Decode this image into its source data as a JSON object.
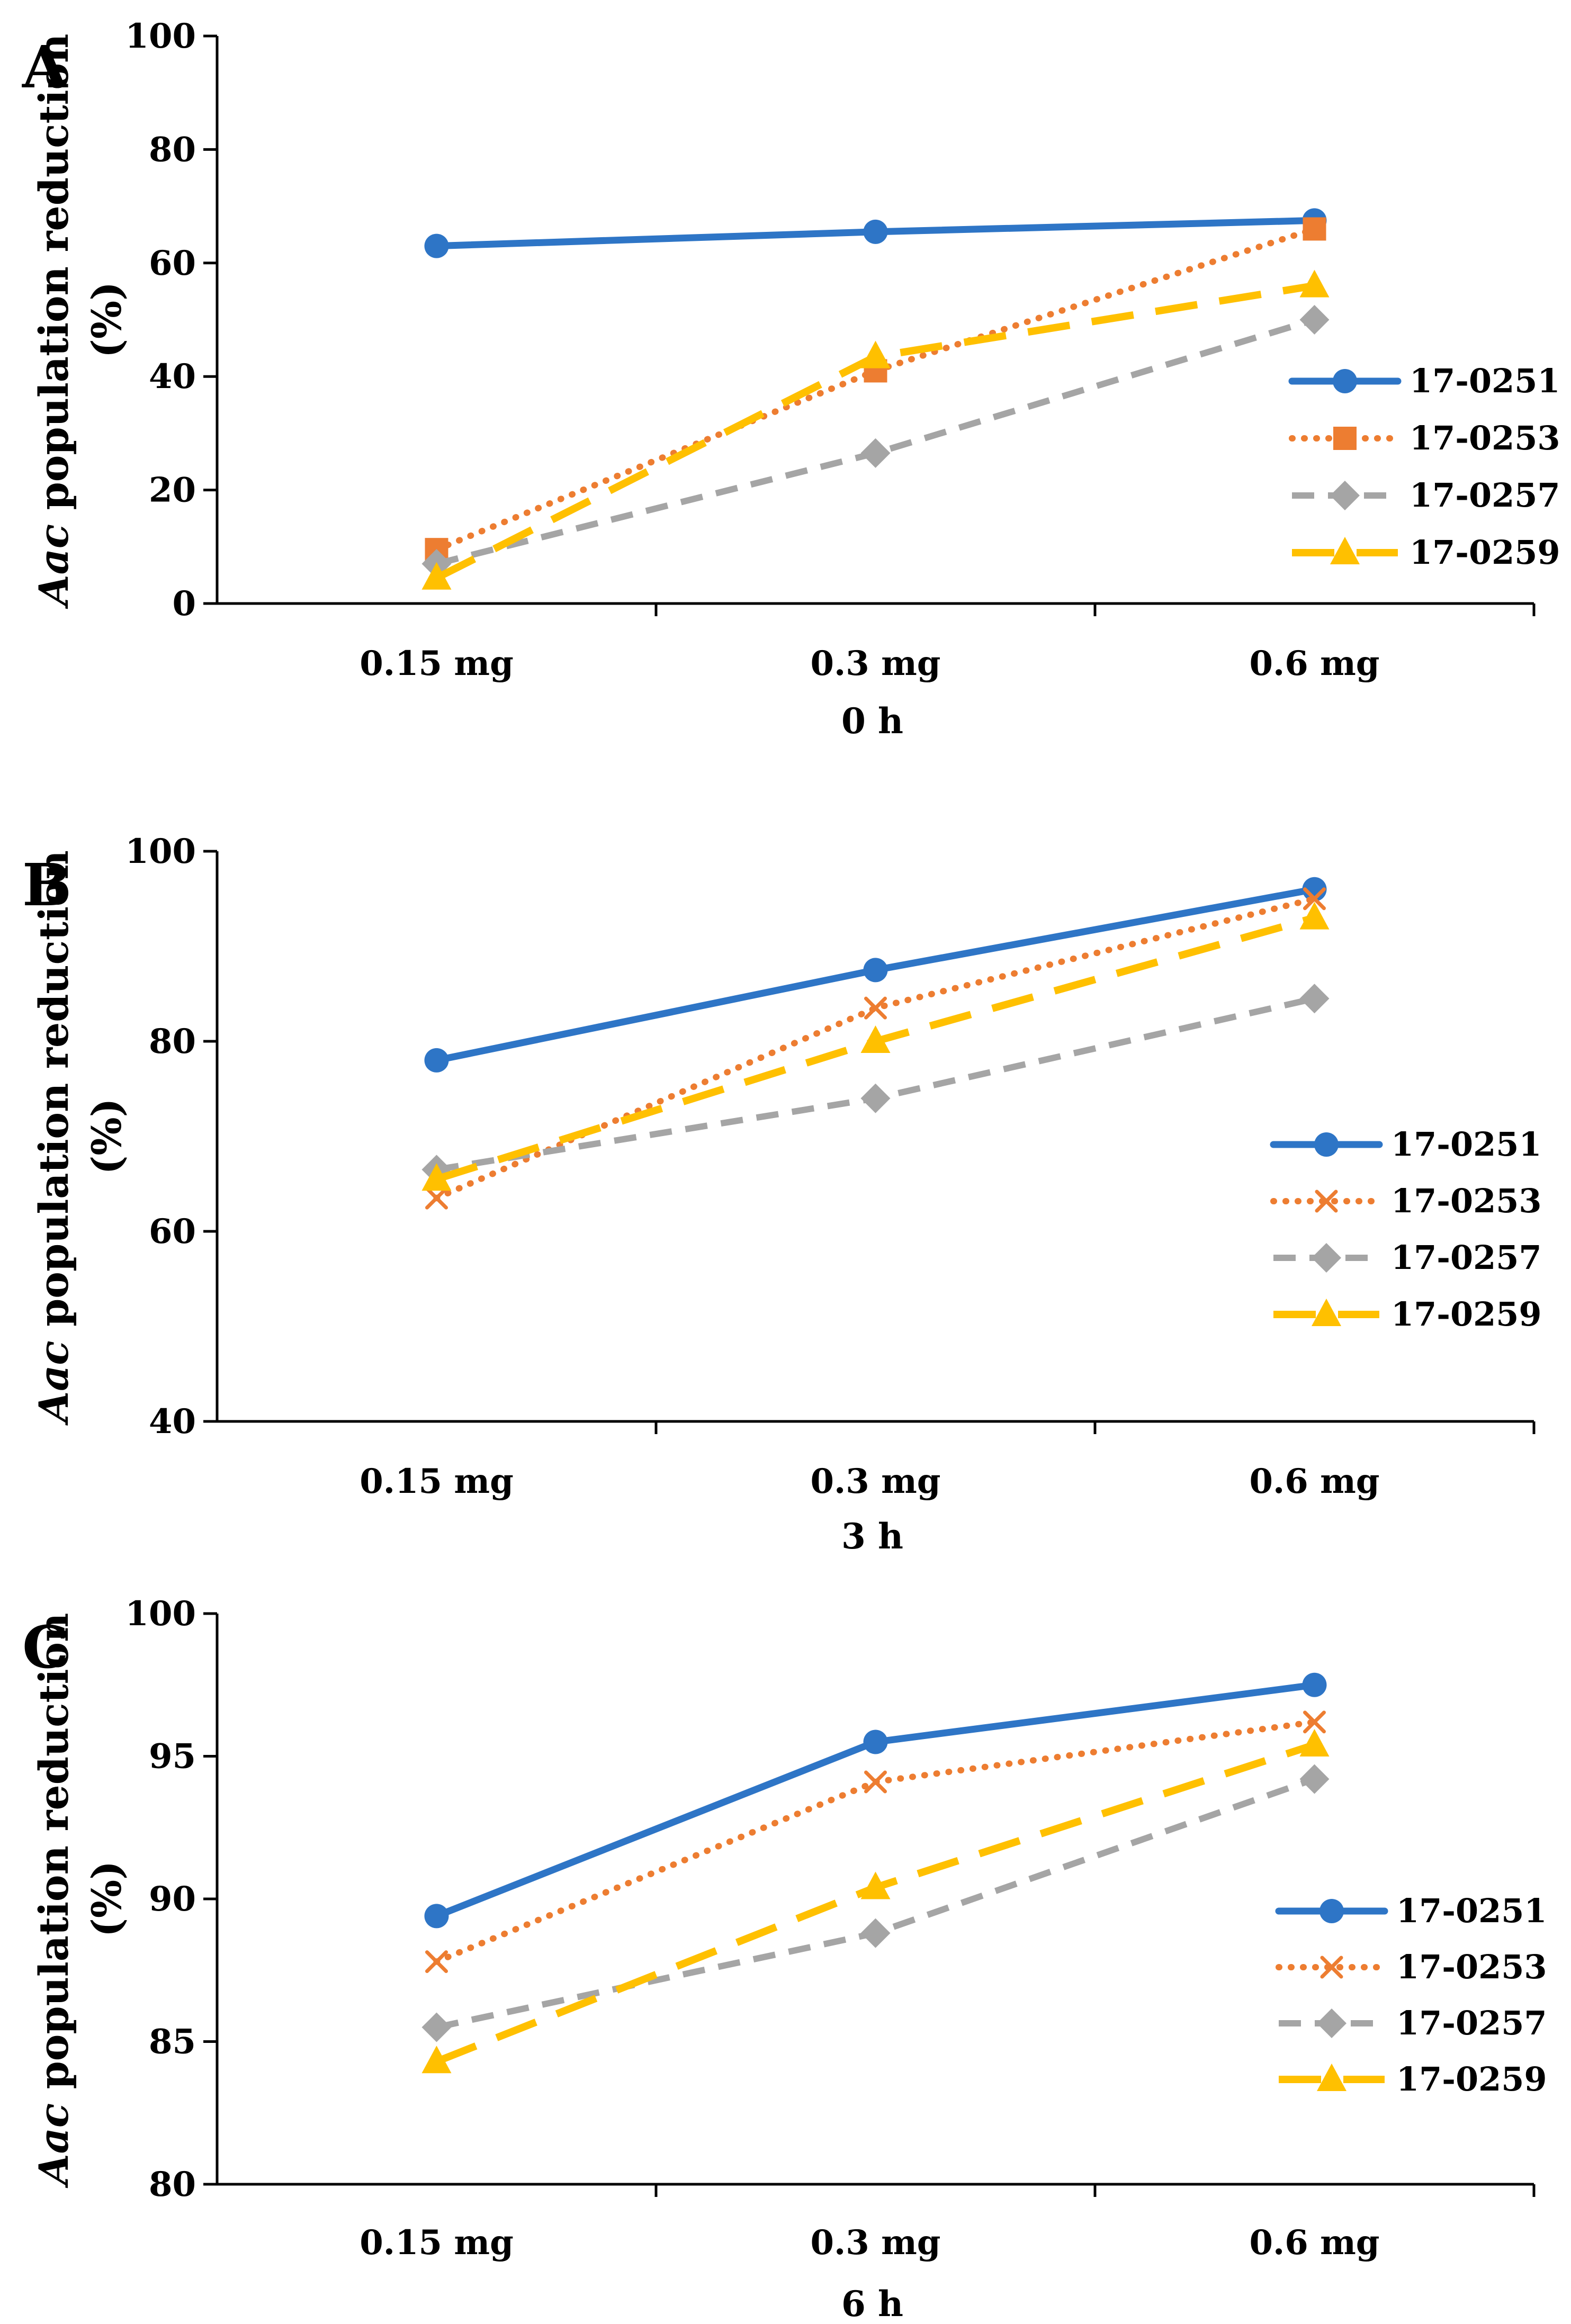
{
  "ylabel_italic": "Aac",
  "ylabel_rest": " population reduction",
  "ylabel_unit": "(%)",
  "colors": {
    "17-0251": "#2E75C6",
    "17-0253": "#ED7D31",
    "17-0257": "#A5A5A5",
    "17-0259": "#FFC000"
  },
  "chart_data": [
    {
      "type": "line",
      "panel": "A",
      "xlabel": "0 h",
      "ylabel": "Aac population reduction (%)",
      "categories": [
        "0.15 mg",
        "0.3 mg",
        "0.6 mg"
      ],
      "ylim": [
        0,
        100
      ],
      "yticks": [
        "0",
        "20",
        "40",
        "60",
        "80",
        "100"
      ],
      "yticks_values": [
        0,
        20,
        40,
        60,
        80,
        100
      ],
      "legend_position": "right",
      "series": [
        {
          "name": "17-0251",
          "values": [
            63,
            65.5,
            67.5
          ],
          "marker": "circle",
          "style": "solid"
        },
        {
          "name": "17-0253",
          "values": [
            9.5,
            41,
            66
          ],
          "marker": "square",
          "style": "dotted"
        },
        {
          "name": "17-0257",
          "values": [
            7,
            26.5,
            50
          ],
          "marker": "diamond",
          "style": "dashed"
        },
        {
          "name": "17-0259",
          "values": [
            4.5,
            43.5,
            56
          ],
          "marker": "triangle",
          "style": "longdash"
        }
      ]
    },
    {
      "type": "line",
      "panel": "B",
      "xlabel": "3 h",
      "ylabel": "Aac population reduction (%)",
      "categories": [
        "0.15 mg",
        "0.3 mg",
        "0.6 mg"
      ],
      "ylim": [
        40,
        100
      ],
      "yticks": [
        "40",
        "60",
        "80",
        "100"
      ],
      "yticks_values": [
        40,
        60,
        80,
        100
      ],
      "legend_position": "right",
      "series": [
        {
          "name": "17-0251",
          "values": [
            78,
            87.5,
            96
          ],
          "marker": "circle",
          "style": "solid"
        },
        {
          "name": "17-0253",
          "values": [
            63.5,
            83.5,
            95
          ],
          "marker": "x",
          "style": "dotted"
        },
        {
          "name": "17-0257",
          "values": [
            66.5,
            74,
            84.5
          ],
          "marker": "diamond",
          "style": "dashed"
        },
        {
          "name": "17-0259",
          "values": [
            65.5,
            80,
            93
          ],
          "marker": "triangle",
          "style": "longdash"
        }
      ]
    },
    {
      "type": "line",
      "panel": "C",
      "xlabel": "6 h",
      "ylabel": "Aac population reduction (%)",
      "categories": [
        "0.15 mg",
        "0.3 mg",
        "0.6 mg"
      ],
      "ylim": [
        80,
        100
      ],
      "yticks": [
        "80",
        "85",
        "90",
        "95",
        "100"
      ],
      "yticks_values": [
        80,
        85,
        90,
        95,
        100
      ],
      "legend_position": "right",
      "series": [
        {
          "name": "17-0251",
          "values": [
            89.4,
            95.5,
            97.5
          ],
          "marker": "circle",
          "style": "solid"
        },
        {
          "name": "17-0253",
          "values": [
            87.8,
            94.1,
            96.2
          ],
          "marker": "x",
          "style": "dotted"
        },
        {
          "name": "17-0257",
          "values": [
            85.5,
            88.8,
            94.2
          ],
          "marker": "diamond",
          "style": "dashed"
        },
        {
          "name": "17-0259",
          "values": [
            84.3,
            90.4,
            95.4
          ],
          "marker": "triangle",
          "style": "longdash"
        }
      ]
    }
  ]
}
